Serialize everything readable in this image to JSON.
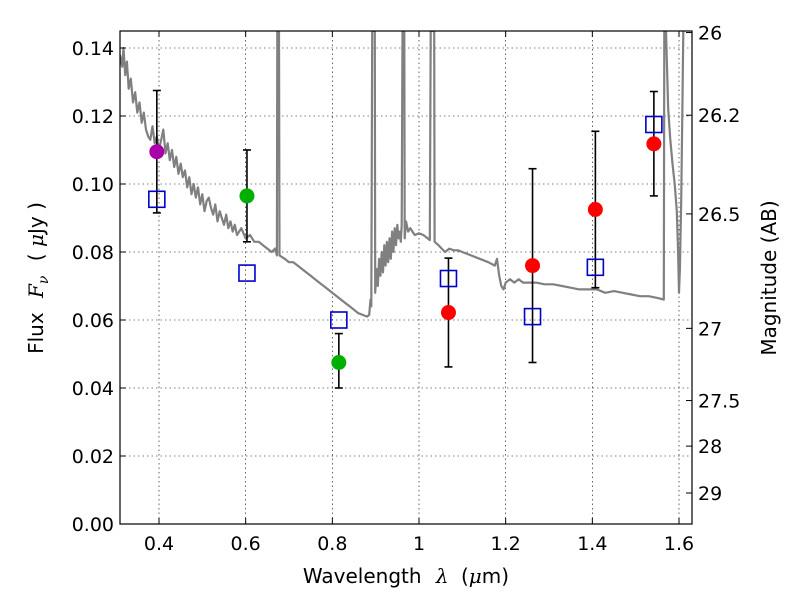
{
  "chart_data": {
    "type": "scatter",
    "xlabel": "Wavelength",
    "xlabel_symbol": "λ",
    "xlabel_unit": "(μm)",
    "xlabel_unit_open": "(",
    "xlabel_unit_mu": "μ",
    "xlabel_unit_rest": "m)",
    "ylabel": "Flux",
    "ylabel_symbol": "F",
    "ylabel_symbol_sub": "ν",
    "ylabel_unit": "( μJy )",
    "ylabel_unit_open": "( ",
    "ylabel_unit_mu": "μ",
    "ylabel_unit_rest": "Jy )",
    "y2label": "Magnitude (AB)",
    "xlim": [
      0.31,
      1.63
    ],
    "ylim": [
      0.0,
      0.145
    ],
    "grid": true,
    "x_ticks": [
      0.4,
      0.6,
      0.8,
      1.0,
      1.2,
      1.4,
      1.6
    ],
    "x_tick_labels": [
      "0.4",
      "0.6",
      "0.8",
      "1",
      "1.2",
      "1.4",
      "1.6"
    ],
    "y_ticks": [
      0.0,
      0.02,
      0.04,
      0.06,
      0.08,
      0.1,
      0.12,
      0.14
    ],
    "y_tick_labels": [
      "0.00",
      "0.02",
      "0.04",
      "0.06",
      "0.08",
      "0.10",
      "0.12",
      "0.14"
    ],
    "y2_ticks": [
      {
        "mag": 26,
        "label": "26"
      },
      {
        "mag": 26.2,
        "label": "26.2"
      },
      {
        "mag": 26.5,
        "label": "26.5"
      },
      {
        "mag": 27,
        "label": "27"
      },
      {
        "mag": 27.5,
        "label": "27.5"
      },
      {
        "mag": 28,
        "label": "28"
      },
      {
        "mag": 29,
        "label": "29"
      }
    ],
    "observed": [
      {
        "x": 0.395,
        "y": 0.1095,
        "yerr_low": 0.0915,
        "yerr_high": 0.1275,
        "color": "#aa00aa"
      },
      {
        "x": 0.603,
        "y": 0.0965,
        "yerr_low": 0.083,
        "yerr_high": 0.11,
        "color": "#00b000"
      },
      {
        "x": 0.815,
        "y": 0.0475,
        "yerr_low": 0.04,
        "yerr_high": 0.056,
        "color": "#00b000"
      },
      {
        "x": 1.068,
        "y": 0.0622,
        "yerr_low": 0.0462,
        "yerr_high": 0.0782,
        "color": "#ff0000"
      },
      {
        "x": 1.262,
        "y": 0.076,
        "yerr_low": 0.0475,
        "yerr_high": 0.1045,
        "color": "#ff0000"
      },
      {
        "x": 1.407,
        "y": 0.0925,
        "yerr_low": 0.0695,
        "yerr_high": 0.1155,
        "color": "#ff0000"
      },
      {
        "x": 1.542,
        "y": 0.1118,
        "yerr_low": 0.0965,
        "yerr_high": 0.1272,
        "color": "#ff0000"
      }
    ],
    "model_photometry": [
      {
        "x": 0.395,
        "y": 0.0955
      },
      {
        "x": 0.603,
        "y": 0.0738
      },
      {
        "x": 0.815,
        "y": 0.06
      },
      {
        "x": 1.068,
        "y": 0.0722
      },
      {
        "x": 1.262,
        "y": 0.061
      },
      {
        "x": 1.407,
        "y": 0.0755
      },
      {
        "x": 1.542,
        "y": 0.1175
      }
    ],
    "sed_model": {
      "color": "#808080",
      "points": [
        [
          0.31,
          0.138
        ],
        [
          0.315,
          0.1345
        ],
        [
          0.318,
          0.14
        ],
        [
          0.322,
          0.132
        ],
        [
          0.326,
          0.136
        ],
        [
          0.33,
          0.128
        ],
        [
          0.335,
          0.131
        ],
        [
          0.34,
          0.124
        ],
        [
          0.345,
          0.127
        ],
        [
          0.35,
          0.121
        ],
        [
          0.355,
          0.124
        ],
        [
          0.36,
          0.118
        ],
        [
          0.365,
          0.121
        ],
        [
          0.37,
          0.116
        ],
        [
          0.375,
          0.114
        ],
        [
          0.38,
          0.113
        ],
        [
          0.385,
          0.117
        ],
        [
          0.39,
          0.112
        ],
        [
          0.395,
          0.114
        ],
        [
          0.4,
          0.11
        ],
        [
          0.405,
          0.113
        ],
        [
          0.41,
          0.116
        ],
        [
          0.415,
          0.109
        ],
        [
          0.42,
          0.112
        ],
        [
          0.425,
          0.107
        ],
        [
          0.43,
          0.11
        ],
        [
          0.435,
          0.105
        ],
        [
          0.44,
          0.108
        ],
        [
          0.445,
          0.103
        ],
        [
          0.45,
          0.106
        ],
        [
          0.455,
          0.102
        ],
        [
          0.46,
          0.104
        ],
        [
          0.465,
          0.099
        ],
        [
          0.47,
          0.102
        ],
        [
          0.475,
          0.097
        ],
        [
          0.48,
          0.1
        ],
        [
          0.485,
          0.096
        ],
        [
          0.49,
          0.099
        ],
        [
          0.495,
          0.094
        ],
        [
          0.5,
          0.097
        ],
        [
          0.505,
          0.092
        ],
        [
          0.51,
          0.095
        ],
        [
          0.515,
          0.096
        ],
        [
          0.52,
          0.093
        ],
        [
          0.525,
          0.091
        ],
        [
          0.53,
          0.094
        ],
        [
          0.535,
          0.089
        ],
        [
          0.54,
          0.092
        ],
        [
          0.545,
          0.09
        ],
        [
          0.55,
          0.088
        ],
        [
          0.555,
          0.091
        ],
        [
          0.56,
          0.087
        ],
        [
          0.565,
          0.089
        ],
        [
          0.57,
          0.086
        ],
        [
          0.575,
          0.088
        ],
        [
          0.58,
          0.085
        ],
        [
          0.59,
          0.087
        ],
        [
          0.6,
          0.084
        ],
        [
          0.61,
          0.085
        ],
        [
          0.62,
          0.083
        ],
        [
          0.63,
          0.083
        ],
        [
          0.64,
          0.082
        ],
        [
          0.65,
          0.081
        ],
        [
          0.66,
          0.08
        ],
        [
          0.668,
          0.081
        ],
        [
          0.672,
          0.079
        ],
        [
          0.673,
          0.145
        ],
        [
          0.677,
          0.145
        ],
        [
          0.678,
          0.079
        ],
        [
          0.69,
          0.078
        ],
        [
          0.7,
          0.077
        ],
        [
          0.71,
          0.077
        ],
        [
          0.72,
          0.076
        ],
        [
          0.73,
          0.075
        ],
        [
          0.74,
          0.074
        ],
        [
          0.75,
          0.073
        ],
        [
          0.76,
          0.072
        ],
        [
          0.77,
          0.071
        ],
        [
          0.78,
          0.07
        ],
        [
          0.79,
          0.069
        ],
        [
          0.8,
          0.068
        ],
        [
          0.81,
          0.067
        ],
        [
          0.82,
          0.066
        ],
        [
          0.83,
          0.065
        ],
        [
          0.84,
          0.064
        ],
        [
          0.85,
          0.063
        ],
        [
          0.86,
          0.062
        ],
        [
          0.87,
          0.0615
        ],
        [
          0.88,
          0.061
        ],
        [
          0.885,
          0.0615
        ],
        [
          0.888,
          0.066
        ],
        [
          0.89,
          0.064
        ],
        [
          0.892,
          0.145
        ],
        [
          0.898,
          0.145
        ],
        [
          0.899,
          0.068
        ],
        [
          0.902,
          0.075
        ],
        [
          0.905,
          0.07
        ],
        [
          0.908,
          0.078
        ],
        [
          0.911,
          0.073
        ],
        [
          0.914,
          0.08
        ],
        [
          0.917,
          0.074
        ],
        [
          0.92,
          0.082
        ],
        [
          0.923,
          0.076
        ],
        [
          0.926,
          0.083
        ],
        [
          0.929,
          0.077
        ],
        [
          0.932,
          0.084
        ],
        [
          0.935,
          0.078
        ],
        [
          0.938,
          0.086
        ],
        [
          0.941,
          0.08
        ],
        [
          0.944,
          0.087
        ],
        [
          0.947,
          0.082
        ],
        [
          0.95,
          0.088
        ],
        [
          0.953,
          0.084
        ],
        [
          0.956,
          0.086
        ],
        [
          0.958,
          0.083
        ],
        [
          0.96,
          0.088
        ],
        [
          0.962,
          0.145
        ],
        [
          0.966,
          0.145
        ],
        [
          0.967,
          0.084
        ],
        [
          0.97,
          0.089
        ],
        [
          0.975,
          0.086
        ],
        [
          0.98,
          0.087
        ],
        [
          0.985,
          0.086
        ],
        [
          0.99,
          0.085
        ],
        [
          1.0,
          0.0855
        ],
        [
          1.01,
          0.085
        ],
        [
          1.02,
          0.084
        ],
        [
          1.025,
          0.0835
        ],
        [
          1.027,
          0.145
        ],
        [
          1.035,
          0.145
        ],
        [
          1.036,
          0.083
        ],
        [
          1.045,
          0.082
        ],
        [
          1.06,
          0.08
        ],
        [
          1.07,
          0.081
        ],
        [
          1.08,
          0.0805
        ],
        [
          1.09,
          0.0805
        ],
        [
          1.1,
          0.08
        ],
        [
          1.12,
          0.079
        ],
        [
          1.14,
          0.078
        ],
        [
          1.16,
          0.077
        ],
        [
          1.175,
          0.076
        ],
        [
          1.18,
          0.078
        ],
        [
          1.185,
          0.073
        ],
        [
          1.19,
          0.07
        ],
        [
          1.195,
          0.069
        ],
        [
          1.2,
          0.071
        ],
        [
          1.21,
          0.072
        ],
        [
          1.22,
          0.071
        ],
        [
          1.23,
          0.072
        ],
        [
          1.24,
          0.071
        ],
        [
          1.25,
          0.071
        ],
        [
          1.27,
          0.071
        ],
        [
          1.29,
          0.0705
        ],
        [
          1.31,
          0.0705
        ],
        [
          1.33,
          0.07
        ],
        [
          1.35,
          0.0695
        ],
        [
          1.37,
          0.069
        ],
        [
          1.39,
          0.069
        ],
        [
          1.41,
          0.069
        ],
        [
          1.43,
          0.068
        ],
        [
          1.45,
          0.0685
        ],
        [
          1.47,
          0.068
        ],
        [
          1.49,
          0.0675
        ],
        [
          1.51,
          0.067
        ],
        [
          1.53,
          0.067
        ],
        [
          1.55,
          0.0665
        ],
        [
          1.565,
          0.066
        ],
        [
          1.566,
          0.145
        ],
        [
          1.57,
          0.145
        ],
        [
          1.575,
          0.122
        ],
        [
          1.58,
          0.113
        ],
        [
          1.585,
          0.106
        ],
        [
          1.59,
          0.1
        ],
        [
          1.595,
          0.092
        ],
        [
          1.598,
          0.08
        ],
        [
          1.6,
          0.068
        ],
        [
          1.602,
          0.075
        ],
        [
          1.605,
          0.095
        ],
        [
          1.608,
          0.125
        ],
        [
          1.61,
          0.145
        ]
      ]
    }
  }
}
